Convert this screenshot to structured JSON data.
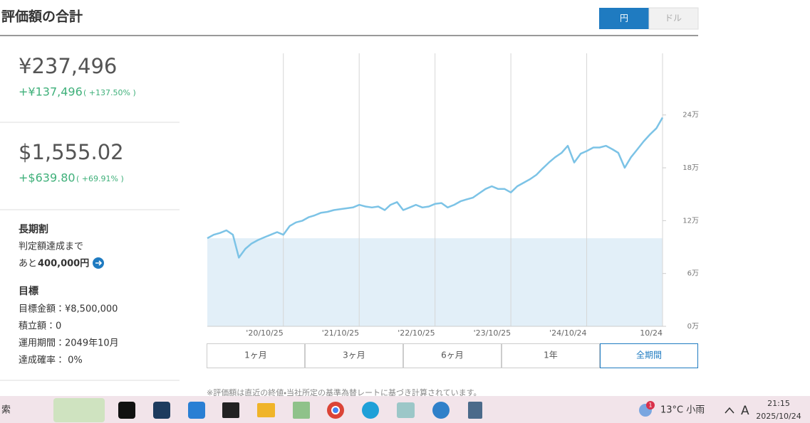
{
  "header": {
    "title": "評価額の合計",
    "currency_toggle": [
      "円",
      "ドル"
    ]
  },
  "summary": {
    "yen": {
      "total": "¥237,496",
      "gain": "+¥137,496",
      "gain_pct": "( +137.50% )"
    },
    "usd": {
      "total": "$1,555.02",
      "gain": "+$639.80",
      "gain_pct": "( +69.91% )"
    }
  },
  "long_term": {
    "title": "長期割",
    "line1": "判定額達成まで",
    "prefix": "あと",
    "amount": "400,000円"
  },
  "goal": {
    "title": "目標",
    "items": [
      "目標金額：¥8,500,000",
      "積立額：0",
      "運用期間：2049年10月",
      "達成確率： 0%"
    ]
  },
  "chart_data": {
    "type": "line",
    "x": [
      "2019/10/25",
      "2019/11/25",
      "2019/12/25",
      "2020/01/25",
      "2020/02/25",
      "2020/03/25",
      "2020/04/25",
      "2020/05/25",
      "2020/06/25",
      "2020/07/25",
      "2020/08/25",
      "2020/09/25",
      "2020/10/25",
      "2020/11/25",
      "2020/12/25",
      "2021/01/25",
      "2021/02/25",
      "2021/03/25",
      "2021/04/25",
      "2021/05/25",
      "2021/06/25",
      "2021/07/25",
      "2021/08/25",
      "2021/09/25",
      "2021/10/25",
      "2021/11/25",
      "2021/12/25",
      "2022/01/25",
      "2022/02/25",
      "2022/03/25",
      "2022/04/25",
      "2022/05/25",
      "2022/06/25",
      "2022/07/25",
      "2022/08/25",
      "2022/09/25",
      "2022/10/25",
      "2022/11/25",
      "2022/12/25",
      "2023/01/25",
      "2023/02/25",
      "2023/03/25",
      "2023/04/25",
      "2023/05/25",
      "2023/06/25",
      "2023/07/25",
      "2023/08/25",
      "2023/09/25",
      "2023/10/25",
      "2023/11/25",
      "2023/12/25",
      "2024/01/25",
      "2024/02/25",
      "2024/03/25",
      "2024/04/25",
      "2024/05/25",
      "2024/06/25",
      "2024/07/25",
      "2024/08/25",
      "2024/09/25",
      "2024/10/24",
      "2024/11/25",
      "2024/12/25",
      "2025/01/25",
      "2025/02/25",
      "2025/03/25",
      "2025/04/25",
      "2025/05/25",
      "2025/06/25",
      "2025/07/25",
      "2025/08/25",
      "2025/09/25",
      "2025/10/24"
    ],
    "series": [
      {
        "color": "#7cc3e6",
        "values": [
          100000,
          104000,
          106000,
          109000,
          104000,
          78000,
          88000,
          94000,
          98000,
          101000,
          104000,
          107000,
          104000,
          114000,
          118000,
          120000,
          124000,
          126000,
          129000,
          130000,
          132000,
          133000,
          134000,
          135000,
          138000,
          136000,
          135000,
          136000,
          132000,
          138000,
          141000,
          132000,
          135000,
          138000,
          135000,
          136000,
          139000,
          140000,
          135000,
          138000,
          142000,
          144000,
          146000,
          151000,
          156000,
          159000,
          156000,
          156000,
          152000,
          159000,
          163000,
          167000,
          172000,
          179000,
          186000,
          192000,
          197000,
          205000,
          186000,
          196000,
          199000,
          203000,
          203000,
          205000,
          201000,
          197000,
          180000,
          192000,
          201000,
          210000,
          218000,
          225000,
          237000
        ]
      }
    ],
    "baseline": 100000,
    "baseline_color": "#e2eff8",
    "xlim": [
      "2019/10/25",
      "2025/10/24"
    ],
    "xticks": [
      {
        "value": "2020/10/25",
        "label": "'20/10/25"
      },
      {
        "value": "2021/10/25",
        "label": "'21/10/25"
      },
      {
        "value": "2022/10/25",
        "label": "'22/10/25"
      },
      {
        "value": "2023/10/25",
        "label": "'23/10/25"
      },
      {
        "value": "2024/10/24",
        "label": "'24/10/24"
      },
      {
        "value": "2025/10/24",
        "label": "10/24"
      }
    ],
    "ylim": [
      0,
      310000
    ],
    "yticks": [
      {
        "value": 0,
        "label": "0万"
      },
      {
        "value": 60000,
        "label": "6万"
      },
      {
        "value": 120000,
        "label": "12万"
      },
      {
        "value": 180000,
        "label": "18万"
      },
      {
        "value": 240000,
        "label": "24万"
      }
    ],
    "grid": true
  },
  "periods": [
    "1ヶ月",
    "3ヶ月",
    "6ヶ月",
    "1年",
    "全期間"
  ],
  "note": "※評価額は直近の終値・当社所定の基準為替レートに基づき計算されています。",
  "taskbar": {
    "search": "索",
    "badge": "1",
    "weather": "13°C 小雨",
    "ime": "A",
    "time": "21:15",
    "date": "2025/10/24"
  }
}
